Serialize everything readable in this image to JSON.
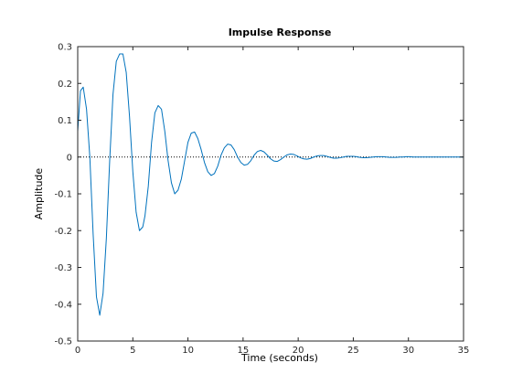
{
  "chart_data": {
    "type": "line",
    "title": "Impulse Response",
    "xlabel": "Time (seconds)",
    "ylabel": "Amplitude",
    "xlim": [
      0,
      35
    ],
    "ylim": [
      -0.5,
      0.3
    ],
    "xticks": [
      "0",
      "5",
      "10",
      "15",
      "20",
      "25",
      "30",
      "35"
    ],
    "yticks": [
      "-0.5",
      "-0.4",
      "-0.3",
      "-0.2",
      "-0.1",
      "0",
      "0.1",
      "0.2",
      "0.3"
    ],
    "grid": false,
    "zero_line": "dotted",
    "series": [
      {
        "color": "#0072bd",
        "x": [
          0,
          0.25,
          0.5,
          0.8,
          1.1,
          1.4,
          1.7,
          2.0,
          2.3,
          2.6,
          2.9,
          3.2,
          3.5,
          3.8,
          4.1,
          4.4,
          4.7,
          5.0,
          5.3,
          5.6,
          5.9,
          6.1,
          6.4,
          6.7,
          7.0,
          7.3,
          7.6,
          7.9,
          8.2,
          8.5,
          8.8,
          9.1,
          9.4,
          9.7,
          10.0,
          10.3,
          10.6,
          10.9,
          11.2,
          11.5,
          11.8,
          12.1,
          12.4,
          12.7,
          13.0,
          13.3,
          13.6,
          13.9,
          14.2,
          14.5,
          14.8,
          15.1,
          15.4,
          15.7,
          16.0,
          16.3,
          16.6,
          16.9,
          17.2,
          17.5,
          17.8,
          18.1,
          18.4,
          18.7,
          19.0,
          19.3,
          19.6,
          19.9,
          20.2,
          20.5,
          20.8,
          21.1,
          21.4,
          21.7,
          22.0,
          22.3,
          22.6,
          22.9,
          23.2,
          23.5,
          23.8,
          24.1,
          24.4,
          24.7,
          25.0,
          25.3,
          25.6,
          25.9,
          26.2,
          26.5,
          26.8,
          27.1,
          27.4,
          27.7,
          28.0,
          28.3,
          28.6,
          28.9,
          29.2,
          29.5,
          29.8,
          30.1,
          30.4,
          30.7,
          31.0,
          31.3,
          31.6,
          31.9,
          32.2,
          32.5,
          32.8,
          33.1,
          33.4,
          33.7,
          34.0,
          34.5,
          35.0
        ],
        "y": [
          0.07,
          0.18,
          0.19,
          0.13,
          0.0,
          -0.21,
          -0.38,
          -0.43,
          -0.37,
          -0.22,
          -0.01,
          0.17,
          0.26,
          0.28,
          0.28,
          0.23,
          0.11,
          -0.04,
          -0.15,
          -0.2,
          -0.19,
          -0.16,
          -0.08,
          0.04,
          0.12,
          0.14,
          0.13,
          0.07,
          -0.01,
          -0.07,
          -0.1,
          -0.09,
          -0.06,
          -0.01,
          0.04,
          0.065,
          0.068,
          0.05,
          0.02,
          -0.015,
          -0.04,
          -0.05,
          -0.045,
          -0.025,
          0.005,
          0.025,
          0.035,
          0.033,
          0.02,
          0.0,
          -0.015,
          -0.022,
          -0.02,
          -0.01,
          0.005,
          0.015,
          0.018,
          0.014,
          0.005,
          -0.005,
          -0.011,
          -0.012,
          -0.007,
          0.0,
          0.006,
          0.008,
          0.007,
          0.003,
          -0.002,
          -0.005,
          -0.006,
          -0.004,
          0.0,
          0.003,
          0.004,
          0.004,
          0.002,
          -0.001,
          -0.003,
          -0.003,
          -0.002,
          0.0,
          0.002,
          0.002,
          0.002,
          0.001,
          -0.001,
          -0.002,
          -0.002,
          -0.001,
          0.0,
          0.001,
          0.001,
          0.001,
          0.0,
          -0.001,
          -0.001,
          -0.001,
          0.0,
          0.0,
          0.001,
          0.001,
          0.0,
          0.0,
          0.0,
          0.0,
          0.0,
          0.0,
          0.0,
          0.0,
          0.0,
          0.0,
          0.0,
          0.0,
          0.0,
          0.0,
          0.0
        ]
      }
    ]
  }
}
